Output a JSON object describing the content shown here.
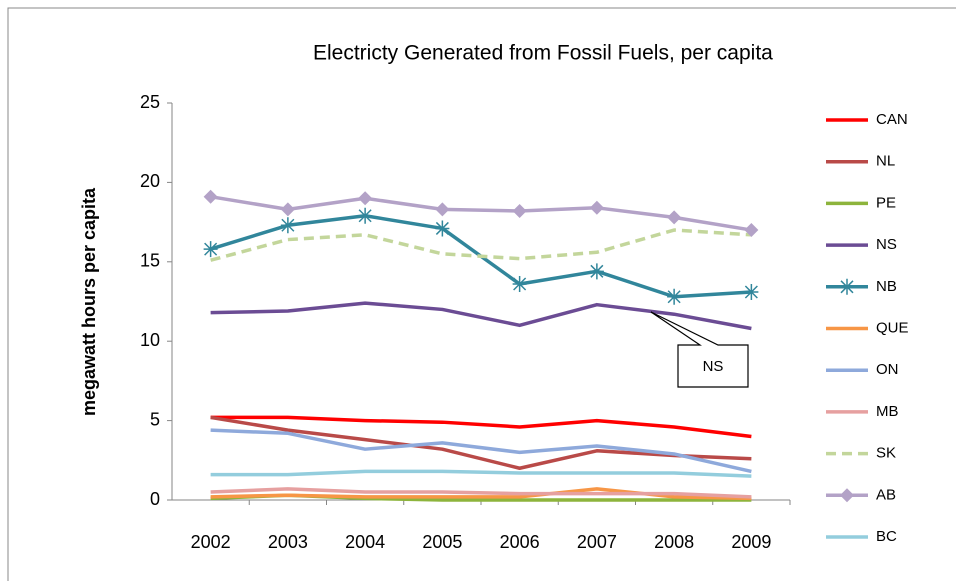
{
  "chart_data": {
    "type": "line",
    "title": "Electricty Generated from Fossil Fuels, per capita",
    "y_label": "megawatt hours per capita",
    "categories": [
      "2002",
      "2003",
      "2004",
      "2005",
      "2006",
      "2007",
      "2008",
      "2009"
    ],
    "ylim": [
      0,
      25
    ],
    "yticks": [
      0,
      5,
      10,
      15,
      20,
      25
    ],
    "grid": false,
    "legend": "right",
    "annotations": [
      {
        "text": "NS"
      }
    ],
    "series": [
      {
        "name": "CAN",
        "color": "#ff0000",
        "values": [
          5.2,
          5.2,
          5.0,
          4.9,
          4.6,
          5.0,
          4.6,
          4.0
        ]
      },
      {
        "name": "NL",
        "color": "#b94a48",
        "values": [
          5.2,
          4.4,
          3.8,
          3.2,
          2.0,
          3.1,
          2.8,
          2.6
        ]
      },
      {
        "name": "PE",
        "color": "#8db43c",
        "values": [
          0.1,
          0.3,
          0.1,
          0.0,
          0.0,
          0.0,
          0.0,
          0.0
        ]
      },
      {
        "name": "NS",
        "color": "#6b4c94",
        "values": [
          11.8,
          11.9,
          12.4,
          12.0,
          11.0,
          12.3,
          11.7,
          10.8
        ]
      },
      {
        "name": "NB",
        "color": "#31869b",
        "marker": "asterisk",
        "values": [
          15.8,
          17.3,
          17.9,
          17.1,
          13.6,
          14.4,
          12.8,
          13.1
        ]
      },
      {
        "name": "QUE",
        "color": "#f79646",
        "values": [
          0.2,
          0.3,
          0.2,
          0.2,
          0.2,
          0.7,
          0.2,
          0.1
        ]
      },
      {
        "name": "ON",
        "color": "#8ea9db",
        "values": [
          4.4,
          4.2,
          3.2,
          3.6,
          3.0,
          3.4,
          2.9,
          1.8
        ]
      },
      {
        "name": "MB",
        "color": "#e6a0a0",
        "values": [
          0.5,
          0.7,
          0.5,
          0.5,
          0.4,
          0.4,
          0.4,
          0.2
        ]
      },
      {
        "name": "SK",
        "color": "#c3d69b",
        "dash": true,
        "values": [
          15.1,
          16.4,
          16.7,
          15.5,
          15.2,
          15.6,
          17.0,
          16.7
        ]
      },
      {
        "name": "AB",
        "color": "#b3a2c7",
        "marker": "diamond",
        "values": [
          19.1,
          18.3,
          19.0,
          18.3,
          18.2,
          18.4,
          17.8,
          17.0
        ]
      },
      {
        "name": "BC",
        "color": "#93cddd",
        "values": [
          1.6,
          1.6,
          1.8,
          1.8,
          1.7,
          1.7,
          1.7,
          1.5
        ]
      }
    ]
  }
}
